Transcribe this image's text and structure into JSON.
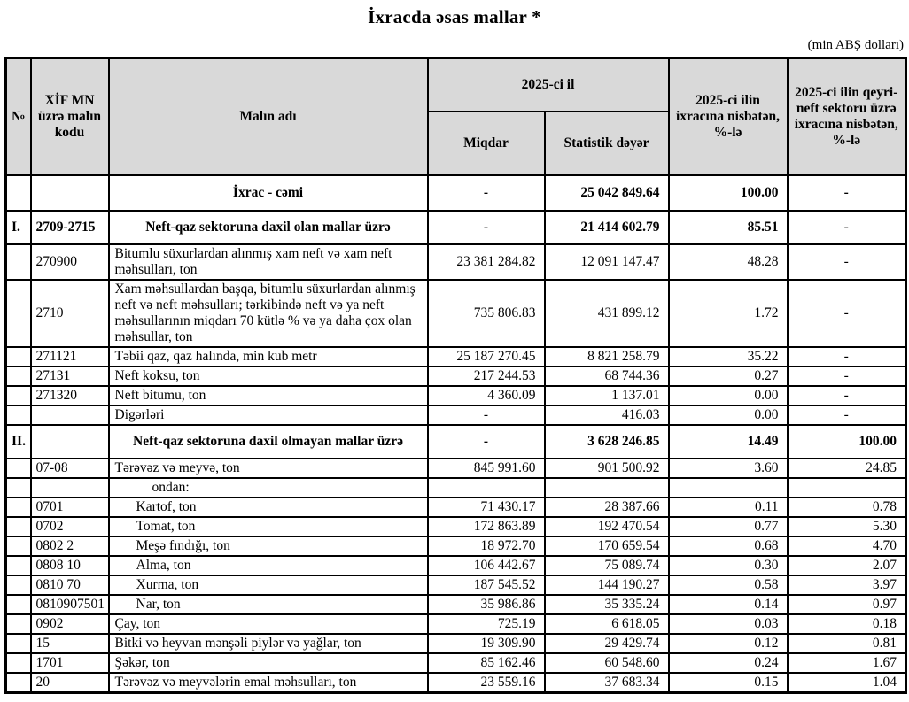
{
  "page": {
    "title": "İxracda əsas mallar *",
    "unit_note": "(min ABŞ dolları)"
  },
  "table": {
    "headers": {
      "no": "№",
      "code": "XİF MN üzrə malın kodu",
      "name": "Malın adı",
      "year_group": "2025-ci il",
      "quantity": "Miqdar",
      "stat_value": "Statistik dəyər",
      "pct_total": "2025-ci ilin ixracına nisbətən, %-lə",
      "pct_nonoil": "2025-ci ilin qeyri-neft sektoru üzrə ixracına nisbətən, %-lə"
    },
    "rows": [
      {
        "style": "total",
        "no": "",
        "code": "",
        "name": "İxrac - cəmi",
        "qty": "-",
        "value": "25 042 849.64",
        "pct": "100.00",
        "pct_non": "-"
      },
      {
        "style": "section",
        "no": "I.",
        "code": "2709-2715",
        "name": "Neft-qaz sektoruna daxil olan mallar üzrə",
        "qty": "-",
        "value": "21 414 602.79",
        "pct": "85.51",
        "pct_non": "-"
      },
      {
        "style": "item",
        "no": "",
        "code": "270900",
        "name": "Bitumlu süxurlardan alınmış xam neft və xam neft məhsulları, ton",
        "qty": "23 381 284.82",
        "value": "12 091 147.47",
        "pct": "48.28",
        "pct_non": "-"
      },
      {
        "style": "item",
        "no": "",
        "code": "2710",
        "name": "Xam məhsullardan başqa, bitumlu süxurlardan alınmış neft və neft məhsulları; tərkibində neft və ya neft məhsullarının miqdarı 70 kütlə % və ya daha çox olan məhsullar, ton",
        "qty": "735 806.83",
        "value": "431 899.12",
        "pct": "1.72",
        "pct_non": "-"
      },
      {
        "style": "item",
        "no": "",
        "code": "271121",
        "name": "Təbii qaz, qaz halında, min kub metr",
        "qty": "25 187 270.45",
        "value": "8 821 258.79",
        "pct": "35.22",
        "pct_non": "-"
      },
      {
        "style": "item",
        "no": "",
        "code": "27131",
        "name": "Neft koksu, ton",
        "qty": "217 244.53",
        "value": "68 744.36",
        "pct": "0.27",
        "pct_non": "-"
      },
      {
        "style": "item",
        "no": "",
        "code": "271320",
        "name": "Neft bitumu, ton",
        "qty": "4 360.09",
        "value": "1 137.01",
        "pct": "0.00",
        "pct_non": "-"
      },
      {
        "style": "item",
        "no": "",
        "code": "",
        "name": "Digərləri",
        "qty": "-",
        "value": "416.03",
        "pct": "0.00",
        "pct_non": "-"
      },
      {
        "style": "section",
        "no": "II.",
        "code": "",
        "name": "Neft-qaz sektoruna daxil olmayan mallar üzrə",
        "qty": "-",
        "value": "3 628 246.85",
        "pct": "14.49",
        "pct_non": "100.00"
      },
      {
        "style": "item",
        "no": "",
        "code": "07-08",
        "name": "Tərəvəz və meyvə, ton",
        "qty": "845 991.60",
        "value": "901 500.92",
        "pct": "3.60",
        "pct_non": "24.85"
      },
      {
        "style": "ondan",
        "no": "",
        "code": "",
        "name": "ondan:",
        "qty": "",
        "value": "",
        "pct": "",
        "pct_non": ""
      },
      {
        "style": "subitem",
        "no": "",
        "code": "0701",
        "name": "Kartof, ton",
        "qty": "71 430.17",
        "value": "28 387.66",
        "pct": "0.11",
        "pct_non": "0.78"
      },
      {
        "style": "subitem",
        "no": "",
        "code": "0702",
        "name": "Tomat, ton",
        "qty": "172 863.89",
        "value": "192 470.54",
        "pct": "0.77",
        "pct_non": "5.30"
      },
      {
        "style": "subitem",
        "no": "",
        "code": "0802 2",
        "name": "Meşə fındığı, ton",
        "qty": "18 972.70",
        "value": "170 659.54",
        "pct": "0.68",
        "pct_non": "4.70"
      },
      {
        "style": "subitem",
        "no": "",
        "code": "0808 10",
        "name": "Alma, ton",
        "qty": "106 442.67",
        "value": "75 089.74",
        "pct": "0.30",
        "pct_non": "2.07"
      },
      {
        "style": "subitem",
        "no": "",
        "code": "0810 70",
        "name": "Xurma, ton",
        "qty": "187 545.52",
        "value": "144 190.27",
        "pct": "0.58",
        "pct_non": "3.97"
      },
      {
        "style": "subitem",
        "no": "",
        "code": "0810907501",
        "name": "Nar, ton",
        "qty": "35 986.86",
        "value": "35 335.24",
        "pct": "0.14",
        "pct_non": "0.97"
      },
      {
        "style": "item",
        "no": "",
        "code": "0902",
        "name": "Çay, ton",
        "qty": "725.19",
        "value": "6 618.05",
        "pct": "0.03",
        "pct_non": "0.18"
      },
      {
        "style": "item",
        "no": "",
        "code": "15",
        "name": "Bitki və heyvan mənşəli piylər və yağlar, ton",
        "qty": "19 309.90",
        "value": "29 429.74",
        "pct": "0.12",
        "pct_non": "0.81"
      },
      {
        "style": "item",
        "no": "",
        "code": "1701",
        "name": "Şəkər, ton",
        "qty": "85 162.46",
        "value": "60 548.60",
        "pct": "0.24",
        "pct_non": "1.67"
      },
      {
        "style": "item",
        "no": "",
        "code": "20",
        "name": "Tərəvəz və meyvələrin emal məhsulları, ton",
        "qty": "23 559.16",
        "value": "37 683.34",
        "pct": "0.15",
        "pct_non": "1.04"
      }
    ]
  }
}
